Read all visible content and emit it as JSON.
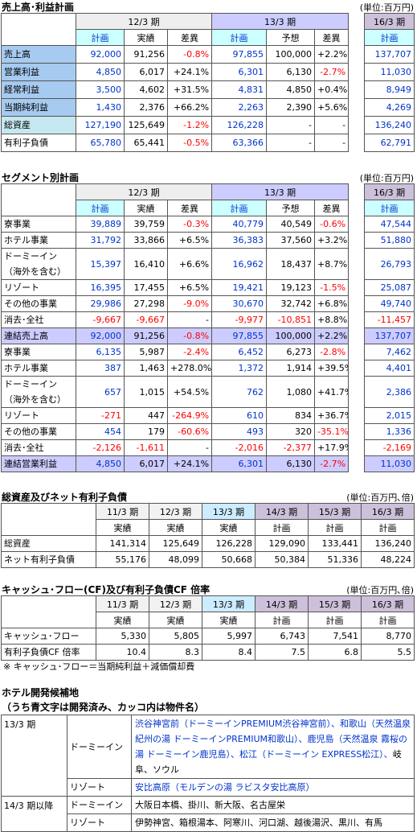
{
  "sales_plan": {
    "title": "売上高･利益計画",
    "unit": "(単位:百万円)",
    "periods": [
      {
        "label": "12/3 期",
        "span": 3,
        "color": "#eeeeee"
      },
      {
        "label": "13/3 期",
        "span": 3,
        "color": "#ccccff"
      },
      {
        "label": "16/3 期",
        "span": 1,
        "color": "#ccc0da"
      }
    ],
    "subheaders": [
      {
        "label": "計画",
        "color": "#ccffff"
      },
      "実績",
      "差異",
      {
        "label": "計画",
        "color": "#ccffff"
      },
      "予想",
      "差異",
      {
        "label": "計画",
        "color": "#ccffff"
      }
    ],
    "column_colors": [
      "#0033cc",
      "#000000",
      "#000000",
      "#0033cc",
      "#000000",
      "#000000",
      "#0033cc"
    ],
    "rows": [
      {
        "label": [
          "売上高"
        ],
        "label_bg": "#a6caf0",
        "cells": [
          "92,000",
          "91,256",
          "-0.8%",
          "97,855",
          "100,000",
          "+2.2%",
          "137,707"
        ]
      },
      {
        "label": [
          "営業利益"
        ],
        "label_bg": "#a6caf0",
        "cells": [
          "4,850",
          "6,017",
          "+24.1%",
          "6,301",
          "6,130",
          "-2.7%",
          "11,030"
        ]
      },
      {
        "label": [
          "経常利益"
        ],
        "label_bg": "#a6caf0",
        "cells": [
          "3,500",
          "4,602",
          "+31.5%",
          "4,831",
          "4,850",
          "+0.4%",
          "8,949"
        ]
      },
      {
        "label": [
          "当期純利益"
        ],
        "label_bg": "#a6caf0",
        "cells": [
          "1,430",
          "2,376",
          "+66.2%",
          "2,263",
          "2,390",
          "+5.6%",
          "4,269"
        ]
      },
      {
        "label": [
          "総資産"
        ],
        "label_bg": "#c5e8f0",
        "cells": [
          "127,190",
          "125,649",
          "-1.2%",
          "126,228",
          "-",
          "-",
          "136,240"
        ]
      },
      {
        "label": [
          "有利子負債"
        ],
        "cells": [
          "65,780",
          "65,441",
          "-0.5%",
          "63,366",
          "-",
          "-",
          "62,791"
        ]
      }
    ]
  },
  "segment_plan": {
    "title": "セグメント別計画",
    "unit": "(単位:百万円)",
    "periods": [
      {
        "label": "12/3 期",
        "span": 3,
        "color": "#eeeeee"
      },
      {
        "label": "13/3 期",
        "span": 3,
        "color": "#ccccff"
      },
      {
        "label": "16/3 期",
        "span": 1,
        "color": "#ccc0da"
      }
    ],
    "subheaders": [
      {
        "label": "計画",
        "color": "#ccffff"
      },
      "実績",
      "差異",
      {
        "label": "計画",
        "color": "#ccffff"
      },
      "予想",
      "差異",
      {
        "label": "計画",
        "color": "#ccffff"
      }
    ],
    "column_colors": [
      "#0033cc",
      "#000000",
      "#000000",
      "#0033cc",
      "#000000",
      "#000000",
      "#0033cc"
    ],
    "rows": [
      {
        "label": [
          "寮事業"
        ],
        "cells": [
          "39,889",
          "39,759",
          "-0.3%",
          "40,779",
          "40,549",
          "-0.6%",
          "47,544"
        ]
      },
      {
        "label": [
          "ホテル事業"
        ],
        "cells": [
          "31,792",
          "33,866",
          "+6.5%",
          "36,383",
          "37,560",
          "+3.2%",
          "51,880"
        ]
      },
      {
        "label": [
          "ドーミーイン",
          "（海外を含む）"
        ],
        "cells": [
          "15,397",
          "16,410",
          "+6.6%",
          "16,962",
          "18,437",
          "+8.7%",
          "26,793"
        ]
      },
      {
        "label": [
          "リゾート"
        ],
        "cells": [
          "16,395",
          "17,455",
          "+6.5%",
          "19,421",
          "19,123",
          "-1.5%",
          "25,087"
        ]
      },
      {
        "label": [
          "その他の事業"
        ],
        "cells": [
          "29,986",
          "27,298",
          "-9.0%",
          "30,670",
          "32,742",
          "+6.8%",
          "49,740"
        ]
      },
      {
        "label": [
          "消去･全社"
        ],
        "cells": [
          "-9,667",
          "-9,667",
          "-",
          "-9,977",
          "-10,851",
          "+8.8%",
          "-11,457"
        ]
      },
      {
        "label": [
          "連結売上高"
        ],
        "row_bg": "#ccccff",
        "cells": [
          "92,000",
          "91,256",
          "-0.8%",
          "97,855",
          "100,000",
          "+2.2%",
          "137,707"
        ]
      },
      {
        "label": [
          "寮事業"
        ],
        "cells": [
          "6,135",
          "5,987",
          "-2.4%",
          "6,452",
          "6,273",
          "-2.8%",
          "7,462"
        ]
      },
      {
        "label": [
          "ホテル事業"
        ],
        "cells": [
          "387",
          "1,463",
          "+278.0%",
          "1,372",
          "1,914",
          "+39.5%",
          "4,401"
        ]
      },
      {
        "label": [
          "ドーミーイン",
          "（海外を含む）"
        ],
        "cells": [
          "657",
          "1,015",
          "+54.5%",
          "762",
          "1,080",
          "+41.7%",
          "2,386"
        ]
      },
      {
        "label": [
          "リゾート"
        ],
        "cells": [
          "-271",
          "447",
          "-264.9%",
          "610",
          "834",
          "+36.7%",
          "2,015"
        ]
      },
      {
        "label": [
          "その他の事業"
        ],
        "cells": [
          "454",
          "179",
          "-60.6%",
          "493",
          "320",
          "-35.1%",
          "1,336"
        ]
      },
      {
        "label": [
          "消去･全社"
        ],
        "cells": [
          "-2,126",
          "-1,611",
          "-",
          "-2,016",
          "-2,377",
          "+17.9%",
          "-2,169"
        ]
      },
      {
        "label": [
          "連結営業利益"
        ],
        "row_bg": "#ccccff",
        "cells": [
          "4,850",
          "6,017",
          "+24.1%",
          "6,301",
          "6,130",
          "-2.7%",
          "11,030"
        ]
      }
    ]
  },
  "assets_debt": {
    "title": "総資産及びネット有利子負債",
    "unit": "(単位:百万円､倍)",
    "periods": [
      {
        "label": "11/3 期",
        "span": 1,
        "color": "#f2f2f2"
      },
      {
        "label": "12/3 期",
        "span": 1,
        "color": "#f2f2f2"
      },
      {
        "label": "13/3 期",
        "span": 1,
        "color": "#ccecff"
      },
      {
        "label": "14/3 期",
        "span": 1,
        "color": "#ccc0da"
      },
      {
        "label": "15/3 期",
        "span": 1,
        "color": "#ccc0da"
      },
      {
        "label": "16/3 期",
        "span": 1,
        "color": "#ccc0da"
      }
    ],
    "subheaders": [
      "実績",
      "実績",
      "実績",
      "計画",
      "計画",
      "計画"
    ],
    "rows": [
      {
        "label": [
          "総資産"
        ],
        "cells": [
          "141,314",
          "125,649",
          "126,228",
          "129,090",
          "133,441",
          "136,240"
        ]
      },
      {
        "label": [
          "ネット有利子負債"
        ],
        "cells": [
          "55,176",
          "48,099",
          "50,668",
          "50,384",
          "51,336",
          "48,224"
        ]
      }
    ]
  },
  "cash_flow": {
    "title": "キャッシュ･フロー(CF)及び有利子負債CF 倍率",
    "unit": "(単位:百万円､倍)",
    "periods": [
      {
        "label": "11/3 期",
        "span": 1,
        "color": "#f2f2f2"
      },
      {
        "label": "12/3 期",
        "span": 1,
        "color": "#f2f2f2"
      },
      {
        "label": "13/3 期",
        "span": 1,
        "color": "#ccecff"
      },
      {
        "label": "14/3 期",
        "span": 1,
        "color": "#ccc0da"
      },
      {
        "label": "15/3 期",
        "span": 1,
        "color": "#ccc0da"
      },
      {
        "label": "16/3 期",
        "span": 1,
        "color": "#ccc0da"
      }
    ],
    "subheaders": [
      "実績",
      "実績",
      "実績",
      "計画",
      "計画",
      "計画"
    ],
    "rows": [
      {
        "label": [
          "キャッシュ･フロー"
        ],
        "cells": [
          "5,330",
          "5,805",
          "5,997",
          "6,743",
          "7,541",
          "8,770"
        ]
      },
      {
        "label": [
          "有利子負債CF 倍率"
        ],
        "cells": [
          "10.4",
          "8.3",
          "8.4",
          "7.5",
          "6.8",
          "5.5"
        ]
      }
    ],
    "note": "※ キャッシュ･フロー＝当期純利益＋減価償却費"
  },
  "hotel_sites": {
    "title": "ホテル開発候補地",
    "subtitle": "（うち青文字は開発済み、カッコ内は物件名）",
    "rows": [
      {
        "period": "13/3 期",
        "type": "ドーミーイン",
        "items": [
          {
            "text": "渋谷神宮前（ドーミーインPREMIUM渋谷神宮前）、",
            "color": "#0033cc"
          },
          {
            "text": "和歌山（天然温泉紀州の湯 ドーミーインPREMIUM和歌山）、",
            "color": "#0033cc"
          },
          {
            "text": "鹿児島（天然温泉 霧桜の湯 ドーミーイン鹿児島）、",
            "color": "#0033cc"
          },
          {
            "text": "松江（ドーミーイン EXPRESS松江）、",
            "color": "#0033cc"
          },
          {
            "text": "岐阜、ソウル",
            "color": "#000000"
          }
        ]
      },
      {
        "type": "リゾート",
        "items": [
          {
            "text": "安比高原（モルデンの湯 ラビスタ安比高原）",
            "color": "#0033cc"
          }
        ]
      },
      {
        "period": "14/3 期以降",
        "type": "ドーミーイン",
        "items": [
          {
            "text": "大阪日本橋、掛川、新大阪、名古屋栄",
            "color": "#000000"
          }
        ]
      },
      {
        "type": "リゾート",
        "items": [
          {
            "text": "伊勢神宮、箱根湯本、阿寒川、河口湖、越後湯沢、黒川、有馬",
            "color": "#000000"
          }
        ]
      }
    ]
  }
}
